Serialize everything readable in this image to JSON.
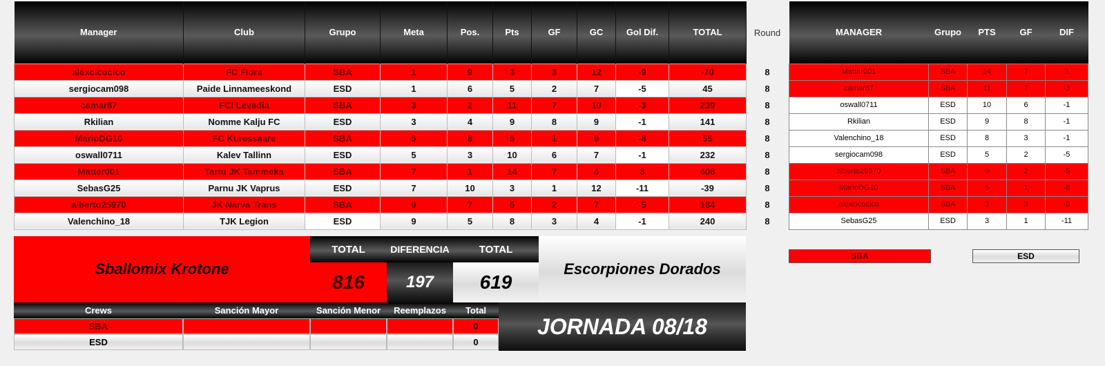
{
  "main": {
    "headers": [
      "Manager",
      "Club",
      "Grupo",
      "Meta",
      "Pos.",
      "Pts",
      "GF",
      "GC",
      "Gol Dif.",
      "TOTAL"
    ],
    "rows": [
      {
        "style": "red",
        "cells": [
          "alexcicocico",
          "FC Flora",
          "SBA",
          "1",
          "9",
          "3",
          "3",
          "12",
          "-9",
          "-70"
        ]
      },
      {
        "style": "gray",
        "cells": [
          "sergiocam098",
          "Paide Linnameeskond",
          "ESD",
          "1",
          "6",
          "5",
          "2",
          "7",
          "-5",
          "45"
        ]
      },
      {
        "style": "red",
        "cells": [
          "camar87",
          "FCI Levadia",
          "SBA",
          "3",
          "2",
          "11",
          "7",
          "10",
          "-3",
          "239"
        ]
      },
      {
        "style": "gray",
        "cells": [
          "Rkilian",
          "Nomme Kalju FC",
          "ESD",
          "3",
          "4",
          "9",
          "8",
          "9",
          "-1",
          "141"
        ]
      },
      {
        "style": "red",
        "cells": [
          "MarioDG10",
          "FC Kuressaare",
          "SBA",
          "5",
          "8",
          "5",
          "1",
          "9",
          "-8",
          "55"
        ]
      },
      {
        "style": "gray",
        "cells": [
          "oswall0711",
          "Kalev Tallinn",
          "ESD",
          "5",
          "3",
          "10",
          "6",
          "7",
          "-1",
          "232"
        ]
      },
      {
        "style": "red",
        "cells": [
          "Matter001",
          "Tartu JK Tammeka",
          "SBA",
          "7",
          "1",
          "14",
          "7",
          "4",
          "3",
          "408"
        ]
      },
      {
        "style": "gray",
        "cells": [
          "SebasG25",
          "Parnu JK Vaprus",
          "ESD",
          "7",
          "10",
          "3",
          "1",
          "12",
          "-11",
          "-39"
        ]
      },
      {
        "style": "red",
        "cells": [
          "alberto25970",
          "JK Narva Trans",
          "SBA",
          "9",
          "7",
          "5",
          "2",
          "7",
          "-5",
          "184"
        ]
      },
      {
        "style": "gray",
        "cells": [
          "Valenchino_18",
          "TJK Legion",
          "ESD",
          "9",
          "5",
          "8",
          "3",
          "4",
          "-1",
          "240"
        ]
      }
    ]
  },
  "round": {
    "header": "Round",
    "values": [
      "8",
      "8",
      "8",
      "8",
      "8",
      "8",
      "8",
      "8",
      "8",
      "8"
    ]
  },
  "side": {
    "headers": [
      "MANAGER",
      "Grupo",
      "PTS",
      "GF",
      "DIF"
    ],
    "rows": [
      {
        "style": "r",
        "cells": [
          "Matter001",
          "SBA",
          "14",
          "7",
          "3"
        ]
      },
      {
        "style": "r",
        "cells": [
          "camar87",
          "SBA",
          "11",
          "7",
          "-3"
        ]
      },
      {
        "style": "w",
        "cells": [
          "oswall0711",
          "ESD",
          "10",
          "6",
          "-1"
        ]
      },
      {
        "style": "w",
        "cells": [
          "Rkilian",
          "ESD",
          "9",
          "8",
          "-1"
        ]
      },
      {
        "style": "w",
        "cells": [
          "Valenchino_18",
          "ESD",
          "8",
          "3",
          "-1"
        ]
      },
      {
        "style": "w",
        "cells": [
          "sergiocam098",
          "ESD",
          "5",
          "2",
          "-5"
        ]
      },
      {
        "style": "r",
        "cells": [
          "alberto25970",
          "SBA",
          "5",
          "2",
          "-5"
        ]
      },
      {
        "style": "r",
        "cells": [
          "MarioDG10",
          "SBA",
          "5",
          "1",
          "-8"
        ]
      },
      {
        "style": "r",
        "cells": [
          "alexcicocico",
          "SBA",
          "3",
          "3",
          "-9"
        ]
      },
      {
        "style": "w",
        "cells": [
          "SebasG25",
          "ESD",
          "3",
          "1",
          "-11"
        ]
      }
    ],
    "legend_sba": "SBA",
    "legend_esd": "ESD"
  },
  "summary": {
    "team_left": "Sballomix Krotone",
    "team_right": "Escorpiones Dorados",
    "total_label_left": "TOTAL",
    "diff_label": "DIFERENCIA",
    "total_label_right": "TOTAL",
    "total_left": "816",
    "difference": "197",
    "total_right": "619"
  },
  "crews": {
    "headers": [
      "Crews",
      "Sanción Mayor",
      "Sanción Menor",
      "Reemplazos",
      "Total"
    ],
    "rows": [
      {
        "name": "SBA",
        "total": "0"
      },
      {
        "name": "ESD",
        "total": "0"
      }
    ]
  },
  "jornada": "JORNADA 08/18"
}
